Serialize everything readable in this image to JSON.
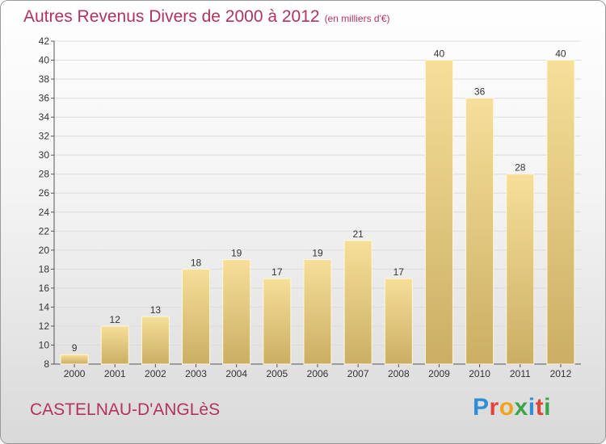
{
  "title": {
    "main": "Autres Revenus Divers de 2000 à 2012",
    "unit": "(en milliers d'€)"
  },
  "footer": {
    "place": "CASTELNAU-D'ANGLèS",
    "brand": "Proxiti"
  },
  "colors": {
    "title": "#b2345c",
    "bar_light": "#f6df9a",
    "bar_dark": "#cbae63",
    "axis": "#555555",
    "grid": "#dcdcdc"
  },
  "chart_data": {
    "type": "bar",
    "categories": [
      "2000",
      "2001",
      "2002",
      "2003",
      "2004",
      "2005",
      "2006",
      "2007",
      "2008",
      "2009",
      "2010",
      "2011",
      "2012"
    ],
    "values": [
      9,
      12,
      13,
      18,
      19,
      17,
      19,
      21,
      17,
      40,
      36,
      28,
      40
    ],
    "data_labels": [
      "9",
      "12",
      "13",
      "18",
      "19",
      "17",
      "19",
      "21",
      "17",
      "40",
      "36",
      "28",
      "40"
    ],
    "yticks": [
      "8",
      "10",
      "12",
      "14",
      "16",
      "18",
      "20",
      "22",
      "24",
      "26",
      "28",
      "30",
      "32",
      "34",
      "36",
      "38",
      "40",
      "42"
    ],
    "ylim": [
      8,
      42
    ],
    "grid": true,
    "legend": "none"
  }
}
